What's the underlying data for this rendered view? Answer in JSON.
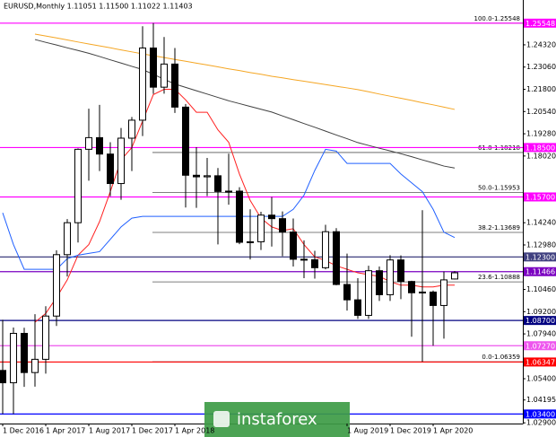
{
  "chart_data": {
    "type": "candlestick",
    "title": "EURUSD,Monthly  1.11051 1.11500 1.11022 1.11403",
    "categories": [
      "1 Dec 2016",
      null,
      null,
      null,
      "1 Apr 2017",
      null,
      null,
      null,
      "1 Aug 2017",
      null,
      null,
      null,
      "1 Dec 2017",
      null,
      null,
      null,
      "1 Apr 2018",
      null,
      null,
      null,
      null,
      null,
      null,
      null,
      null,
      null,
      null,
      null,
      null,
      null,
      null,
      null,
      "1 Aug 2019",
      null,
      null,
      null,
      "1 Dec 2019",
      null,
      null,
      null,
      "1 Apr 2020",
      null,
      null
    ],
    "open": [
      1.0587,
      1.0517,
      1.0797,
      1.0575,
      1.065,
      1.0895,
      1.1243,
      1.1424,
      1.184,
      1.1906,
      1.1813,
      1.1646,
      1.1903,
      1.2005,
      1.2414,
      1.2192,
      1.2323,
      1.2079,
      1.1693,
      1.1684,
      1.169,
      1.1601,
      1.1603,
      1.1313,
      1.1316,
      1.1467,
      1.1447,
      1.1371,
      1.1217,
      1.1214,
      1.1169,
      1.1373,
      1.1074,
      1.0987,
      1.0899,
      1.1152,
      1.1016,
      1.1213,
      1.1091,
      1.1027,
      1.1031,
      1.0955,
      1.11051
    ],
    "high": [
      1.0874,
      1.083,
      1.0829,
      1.0906,
      1.0951,
      1.1268,
      1.1445,
      1.1845,
      1.207,
      1.2092,
      1.188,
      1.1961,
      1.2023,
      1.2537,
      1.2555,
      1.2476,
      1.2414,
      1.2097,
      1.1852,
      1.1791,
      1.1734,
      1.1815,
      1.1625,
      1.15,
      1.1486,
      1.157,
      1.1488,
      1.1448,
      1.1324,
      1.1265,
      1.1412,
      1.1393,
      1.1249,
      1.111,
      1.118,
      1.1176,
      1.124,
      1.1239,
      1.1095,
      1.1495,
      1.104,
      1.1147,
      1.115
    ],
    "low": [
      1.034,
      1.034,
      1.0494,
      1.0495,
      1.0569,
      1.0839,
      1.1119,
      1.1312,
      1.1662,
      1.1717,
      1.1574,
      1.1554,
      1.1717,
      1.1915,
      1.2154,
      1.2155,
      1.2046,
      1.151,
      1.1508,
      1.1575,
      1.1301,
      1.1526,
      1.1302,
      1.1216,
      1.1269,
      1.1289,
      1.1234,
      1.1176,
      1.111,
      1.1107,
      1.116,
      1.107,
      1.0926,
      1.0879,
      1.0879,
      1.0981,
      1.0981,
      1.0991,
      1.0778,
      1.0636,
      1.0727,
      1.0767,
      1.11022
    ],
    "close": [
      1.0517,
      1.0797,
      1.0575,
      1.065,
      1.0895,
      1.1243,
      1.1424,
      1.184,
      1.1906,
      1.1813,
      1.1646,
      1.1903,
      1.2005,
      1.2414,
      1.2192,
      1.2323,
      1.2079,
      1.1693,
      1.1684,
      1.169,
      1.1601,
      1.1603,
      1.1313,
      1.1316,
      1.1467,
      1.1447,
      1.1371,
      1.1217,
      1.1214,
      1.1169,
      1.1373,
      1.1074,
      1.0987,
      1.0899,
      1.1152,
      1.1016,
      1.1213,
      1.1091,
      1.1027,
      1.1031,
      1.0955,
      1.11,
      1.11403
    ],
    "up_color": "#ffffff",
    "down_color": "#000000",
    "ylim": [
      1.0286,
      1.2686
    ],
    "yticks": [
      {
        "value": 1.2432,
        "label": "1.24320"
      },
      {
        "value": 1.2306,
        "label": "1.23060"
      },
      {
        "value": 1.218,
        "label": "1.21800"
      },
      {
        "value": 1.2054,
        "label": "1.20540"
      },
      {
        "value": 1.1928,
        "label": "1.19280"
      },
      {
        "value": 1.1802,
        "label": "1.18020"
      },
      {
        "value": 1.1424,
        "label": "1.14240"
      },
      {
        "value": 1.1298,
        "label": "1.12980"
      },
      {
        "value": 1.1046,
        "label": "1.10460"
      },
      {
        "value": 1.092,
        "label": "1.09200"
      },
      {
        "value": 1.0794,
        "label": "1.07940"
      },
      {
        "value": 1.054,
        "label": "1.05400"
      },
      1.04195,
      {
        "value": 1.029,
        "label": "1.02900"
      }
    ],
    "lines": [
      {
        "color": "#f5a623",
        "values": [
          null,
          null,
          null,
          1.2493,
          1.2482,
          1.2471,
          1.246,
          1.2448,
          1.2437,
          1.2426,
          1.2415,
          1.2403,
          1.2392,
          1.2381,
          1.237,
          1.236,
          1.2349,
          1.2339,
          1.2328,
          1.2318,
          1.2307,
          1.2296,
          1.2286,
          1.2275,
          1.2265,
          1.2254,
          1.2245,
          1.2235,
          1.2226,
          1.2216,
          1.2207,
          1.2197,
          1.2188,
          1.2178,
          1.2166,
          1.2153,
          1.2141,
          1.2129,
          1.2117,
          1.2104,
          1.2092,
          1.2079,
          1.2066
        ]
      },
      {
        "color": "#404040",
        "values": [
          null,
          null,
          null,
          1.2462,
          1.2446,
          1.2431,
          1.2415,
          1.24,
          1.2384,
          1.2366,
          1.2347,
          1.2329,
          1.231,
          1.2292,
          1.2265,
          1.2237,
          1.221,
          1.2191,
          1.2172,
          1.2153,
          1.2134,
          1.2115,
          1.2099,
          1.2083,
          1.2067,
          1.2051,
          1.2029,
          1.2008,
          1.1986,
          1.1965,
          1.1943,
          1.1921,
          1.19,
          1.1878,
          1.1862,
          1.1846,
          1.1831,
          1.1815,
          1.1798,
          1.178,
          1.1763,
          1.1745,
          1.1734
        ]
      },
      {
        "color": "#ff2020",
        "values": [
          null,
          null,
          null,
          1.086,
          1.091,
          1.1,
          1.11,
          1.124,
          1.13,
          1.143,
          1.16,
          1.178,
          1.185,
          1.2,
          1.215,
          1.218,
          1.218,
          1.212,
          1.205,
          1.205,
          1.195,
          1.188,
          1.17,
          1.155,
          1.145,
          1.14,
          1.138,
          1.139,
          1.13,
          1.123,
          1.121,
          1.118,
          1.116,
          1.114,
          1.113,
          1.112,
          1.109,
          1.107,
          1.107,
          1.106,
          1.106,
          1.107,
          1.107
        ]
      },
      {
        "color": "#2060ff",
        "values": [
          1.148,
          1.13,
          1.116,
          1.116,
          1.116,
          1.116,
          1.122,
          1.124,
          1.125,
          1.126,
          1.133,
          1.14,
          1.145,
          1.146,
          1.146,
          1.146,
          1.146,
          1.146,
          1.146,
          1.146,
          1.146,
          1.146,
          1.146,
          1.146,
          1.146,
          1.146,
          1.146,
          1.15,
          1.158,
          1.172,
          1.184,
          1.183,
          1.176,
          1.176,
          1.176,
          1.176,
          1.176,
          1.17,
          1.165,
          1.16,
          1.15,
          1.137,
          1.134
        ]
      }
    ],
    "levels": [
      {
        "value": 1.25548,
        "label": "1.25548",
        "color": "#ff00ff"
      },
      {
        "value": 1.185,
        "label": "1.18500",
        "color": "#ff00ff"
      },
      {
        "value": 1.157,
        "label": "1.15700",
        "color": "#ff00ff"
      },
      {
        "value": 1.123,
        "label": "1.12300",
        "color": "#404080"
      },
      {
        "value": 1.11466,
        "label": "1.11466",
        "color": "#7a00c0"
      },
      {
        "value": 1.087,
        "label": "1.08700",
        "color": "#000080"
      },
      {
        "value": 1.0727,
        "label": "1.07270",
        "color": "#ee55ee"
      },
      {
        "value": 1.06347,
        "label": "1.06347",
        "color": "#ff0000"
      },
      {
        "value": 1.034,
        "label": "1.03400",
        "color": "#0000ff"
      }
    ],
    "fibonacci": [
      {
        "value": 1.25548,
        "label": "100.0-1.25548"
      },
      {
        "value": 1.18218,
        "label": "61.8-1.18218"
      },
      {
        "value": 1.15953,
        "label": "50.0-1.15953"
      },
      {
        "value": 1.13689,
        "label": "38.2-1.13689"
      },
      {
        "value": 1.10888,
        "label": "23.6-1.10888"
      },
      {
        "value": 1.06359,
        "label": "0.0-1.06359"
      }
    ],
    "watermark": "instaforex"
  }
}
